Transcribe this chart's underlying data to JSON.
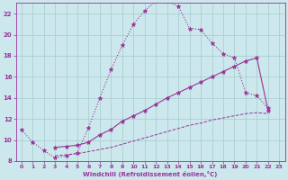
{
  "xlabel": "Windchill (Refroidissement éolien,°C)",
  "bg_color": "#cce8ec",
  "grid_color": "#aacfd5",
  "line_color": "#993399",
  "x_min": 0,
  "x_max": 23,
  "y_min": 8,
  "y_max": 23,
  "yticks": [
    8,
    10,
    12,
    14,
    16,
    18,
    20,
    22
  ],
  "xticks": [
    0,
    1,
    2,
    3,
    4,
    5,
    6,
    7,
    8,
    9,
    10,
    11,
    12,
    13,
    14,
    15,
    16,
    17,
    18,
    19,
    20,
    21,
    22,
    23
  ],
  "line1_x": [
    0,
    1,
    2,
    3,
    4,
    5,
    6,
    7,
    8,
    9,
    10,
    11,
    12,
    13,
    14,
    15,
    16,
    17,
    18,
    19,
    20,
    21,
    22
  ],
  "line1_y": [
    11.0,
    9.8,
    9.0,
    8.3,
    8.5,
    8.8,
    11.2,
    14.0,
    16.7,
    19.0,
    21.0,
    22.3,
    23.2,
    23.2,
    22.7,
    20.6,
    20.5,
    19.2,
    18.2,
    17.8,
    14.5,
    14.2,
    13.0
  ],
  "line2_x": [
    3,
    4,
    5,
    6,
    7,
    8,
    9,
    10,
    11,
    12,
    13,
    14,
    15,
    16,
    17,
    18,
    19,
    20,
    21,
    22
  ],
  "line2_y": [
    9.3,
    9.4,
    9.5,
    9.8,
    10.5,
    11.0,
    11.8,
    12.3,
    12.8,
    13.4,
    14.0,
    14.5,
    15.0,
    15.5,
    16.0,
    16.5,
    17.0,
    17.5,
    17.8,
    12.8
  ],
  "line3_x": [
    3,
    4,
    5,
    6,
    7,
    8,
    9,
    10,
    11,
    12,
    13,
    14,
    15,
    16,
    17,
    18,
    19,
    20,
    21,
    22
  ],
  "line3_y": [
    8.5,
    8.6,
    8.7,
    8.9,
    9.1,
    9.3,
    9.6,
    9.9,
    10.2,
    10.5,
    10.8,
    11.1,
    11.4,
    11.6,
    11.9,
    12.1,
    12.3,
    12.5,
    12.6,
    12.5
  ]
}
